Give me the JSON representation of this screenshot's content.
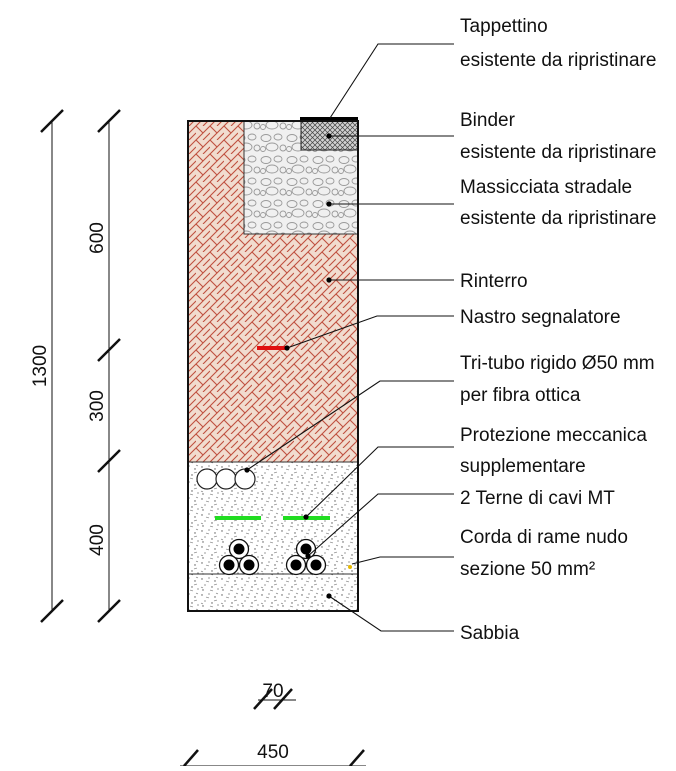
{
  "labels": [
    {
      "line1": "Tappettino",
      "line2": "esistente da ripristinare"
    },
    {
      "line1": "Binder",
      "line2": "esistente da ripristinare"
    },
    {
      "line1": "Massicciata stradale",
      "line2": "esistente da ripristinare"
    },
    {
      "line1": "Rinterro",
      "line2": ""
    },
    {
      "line1": "Nastro segnalatore",
      "line2": ""
    },
    {
      "line1": "Tri-tubo rigido Ø50 mm",
      "line2": "per fibra ottica"
    },
    {
      "line1": "Protezione meccanica",
      "line2": "supplementare"
    },
    {
      "line1": "2 Terne di cavi MT",
      "line2": ""
    },
    {
      "line1": "Corda di rame nudo",
      "line2": "sezione 50 mm²"
    },
    {
      "line1": "Sabbia",
      "line2": ""
    }
  ],
  "dimensions": {
    "total_depth": "1300",
    "upper_layer": "600",
    "middle_layer": "300",
    "lower_layer": "400",
    "cable_offset": "70",
    "trench_width": "450"
  },
  "colors": {
    "rinterro_fill": "#f1dccf",
    "rinterro_hatch": "#c0503f",
    "massicciata_fill": "#f0f0f0",
    "binder_fill": "#d2d2d2",
    "tappettino": "#000000",
    "nastro": "#e01010",
    "protezione": "#22dd22",
    "sabbia_fill": "#ffffff"
  }
}
